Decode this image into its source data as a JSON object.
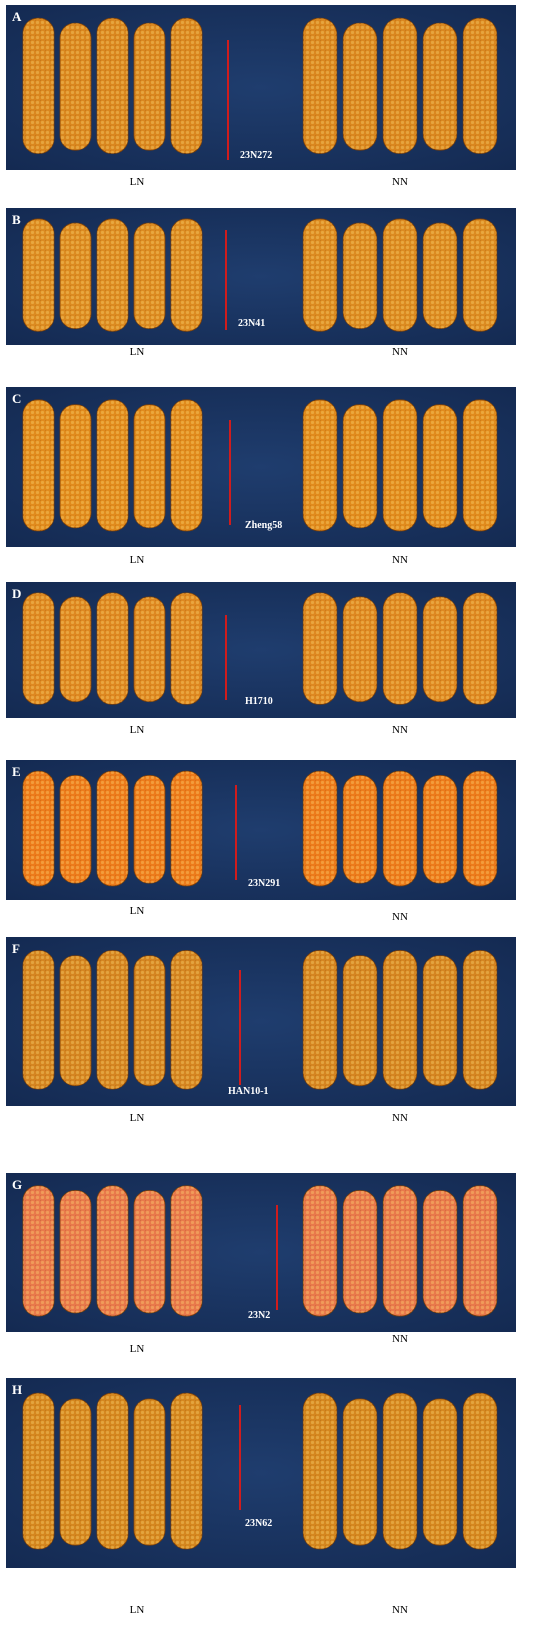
{
  "panels": [
    {
      "letter": "A",
      "line": "23N272",
      "left": "LN",
      "right": "NN"
    },
    {
      "letter": "B",
      "line": "23N41",
      "left": "LN",
      "right": "NN"
    },
    {
      "letter": "C",
      "line": "Zheng58",
      "left": "LN",
      "right": "NN"
    },
    {
      "letter": "D",
      "line": "H1710",
      "left": "LN",
      "right": "NN"
    },
    {
      "letter": "E",
      "line": "23N291",
      "left": "LN",
      "right": "NN"
    },
    {
      "letter": "F",
      "line": "HAN10-1",
      "left": "LN",
      "right": "NN"
    },
    {
      "letter": "G",
      "line": "23N2",
      "left": "LN",
      "right": "NN"
    },
    {
      "letter": "H",
      "line": "23N62",
      "left": "LN",
      "right": "NN"
    }
  ]
}
